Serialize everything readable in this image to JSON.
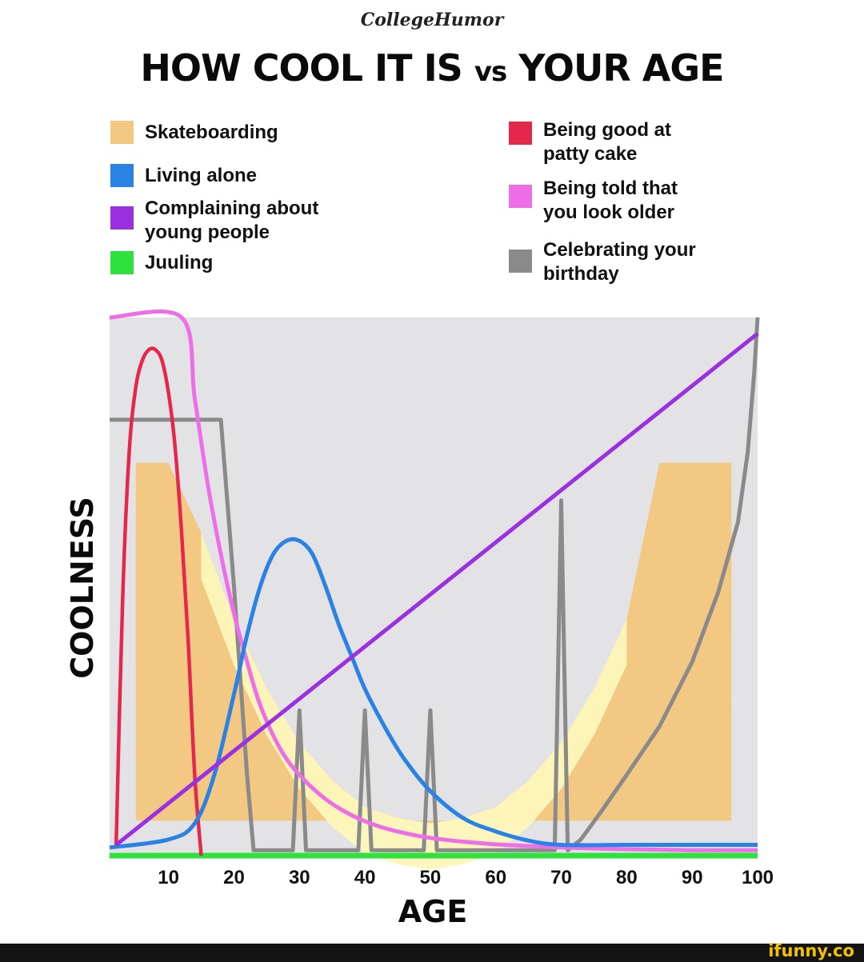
{
  "header": {
    "brand": "CollegeHumor",
    "title_main": "HOW COOL IT IS ",
    "title_vs": "vs",
    "title_end": " YOUR AGE"
  },
  "legend": {
    "left": [
      {
        "label": "Skateboarding",
        "color": "#f2c882"
      },
      {
        "label": "Living alone",
        "color": "#2a82e4"
      },
      {
        "label": "Complaining about young people",
        "color": "#9a30e0"
      },
      {
        "label": "Juuling",
        "color": "#2de23c"
      }
    ],
    "right": [
      {
        "label": "Being good at patty cake",
        "color": "#e4284c"
      },
      {
        "label": "Being told that you look older",
        "color": "#ee6ee8"
      },
      {
        "label": "Celebrating your birthday",
        "color": "#8a8a8a"
      }
    ]
  },
  "chart_data": {
    "type": "line",
    "title": "HOW COOL IT IS vs YOUR AGE",
    "xlabel": "AGE",
    "ylabel": "COOLNESS",
    "xlim": [
      1,
      100
    ],
    "ylim": [
      0,
      100
    ],
    "x_ticks": [
      10,
      20,
      30,
      40,
      50,
      60,
      70,
      80,
      90,
      100
    ],
    "y_ticks_shown": false,
    "grid": false,
    "legend_position": "top",
    "background_color": "#e3e3e5",
    "series": [
      {
        "name": "Skateboarding",
        "color": "#f2c882",
        "style": "halfpipe-band",
        "x": [
          5,
          10,
          15,
          20,
          25,
          30,
          35,
          40,
          45,
          50,
          55,
          60,
          65,
          70,
          75,
          80,
          85,
          96
        ],
        "y": [
          73,
          73,
          60,
          44,
          31,
          21,
          14,
          9,
          7,
          6,
          7,
          9,
          14,
          21,
          31,
          44,
          73,
          73
        ]
      },
      {
        "name": "Living alone",
        "color": "#2a82e4",
        "x": [
          1,
          10,
          14,
          17,
          20,
          22,
          24,
          26,
          28,
          30,
          32,
          34,
          36,
          38,
          40,
          43,
          46,
          50,
          55,
          60,
          65,
          70,
          80,
          90,
          100
        ],
        "y": [
          1.5,
          3,
          6,
          15,
          30,
          41,
          50,
          56,
          58.5,
          58.5,
          56,
          50,
          43,
          37,
          31,
          24,
          18,
          12,
          7,
          4.5,
          2.8,
          2,
          2,
          2,
          2
        ]
      },
      {
        "name": "Complaining about young people",
        "color": "#9a30e0",
        "x": [
          2,
          100
        ],
        "y": [
          2,
          97
        ]
      },
      {
        "name": "Juuling",
        "color": "#2de23c",
        "x": [
          1,
          100
        ],
        "y": [
          0,
          0
        ]
      },
      {
        "name": "Being good at patty cake",
        "color": "#e4284c",
        "x": [
          2,
          3,
          4,
          5,
          6,
          7,
          8,
          9,
          10,
          11,
          12,
          13,
          14,
          15
        ],
        "y": [
          2,
          48,
          75,
          87,
          92,
          94,
          94,
          92,
          86,
          76,
          60,
          40,
          15,
          0
        ]
      },
      {
        "name": "Being told that you look older",
        "color": "#ee6ee8",
        "x": [
          1,
          12,
          14,
          16,
          18,
          20,
          22,
          24,
          27,
          30,
          34,
          38,
          42,
          46,
          50,
          55,
          60,
          65,
          70,
          80,
          90,
          100
        ],
        "y": [
          100,
          100,
          85,
          69,
          56,
          45,
          36,
          28,
          20,
          15,
          10.5,
          7.5,
          5.5,
          4.2,
          3.3,
          2.6,
          2.1,
          1.8,
          1.5,
          1.2,
          1.0,
          1.0
        ]
      },
      {
        "name": "Celebrating your birthday",
        "color": "#8a8a8a",
        "x": [
          1,
          18,
          20,
          22,
          23,
          29,
          30,
          31,
          39,
          40,
          41,
          48,
          49,
          50,
          51,
          68,
          69,
          70,
          71,
          73,
          76,
          80,
          85,
          90,
          94,
          97,
          98.5,
          99.5,
          100
        ],
        "y": [
          81,
          81,
          50,
          15,
          1,
          1,
          27,
          1,
          1,
          27,
          1,
          1,
          1,
          27,
          1,
          1,
          1,
          66,
          1,
          3,
          8,
          15,
          24,
          36,
          49,
          62,
          75,
          90,
          100
        ]
      }
    ]
  },
  "footer": {
    "watermark": "ifunny.co"
  }
}
